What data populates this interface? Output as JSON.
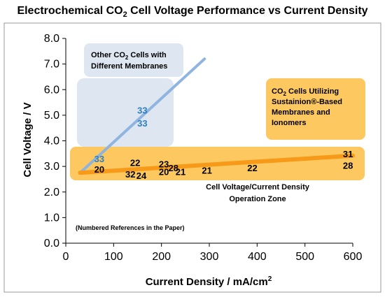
{
  "chart_data": {
    "type": "line",
    "title": "Electrochemical CO2 Cell Voltage Performance vs Current Density",
    "xlabel": "Current Density / mA/cm2",
    "ylabel": "Cell Voltage / V",
    "xlim": [
      0,
      600
    ],
    "ylim": [
      0.0,
      8.0
    ],
    "x_ticks": [
      "0",
      "100",
      "200",
      "300",
      "400",
      "500",
      "600"
    ],
    "y_ticks": [
      "0.0",
      "1.0",
      "2.0",
      "3.0",
      "4.0",
      "5.0",
      "6.0",
      "7.0",
      "8.0"
    ],
    "grid": false,
    "series": [
      {
        "name": "",
        "color": "#8fb4df",
        "x": [
          30,
          290
        ],
        "y": [
          2.75,
          7.2
        ]
      },
      {
        "name": "",
        "color": "#f79a1a",
        "x": [
          30,
          600
        ],
        "y": [
          2.75,
          3.42
        ]
      }
    ],
    "reference_labels": [
      {
        "text": "33",
        "x": 70,
        "y": 3.3,
        "color": "#2e7fbf"
      },
      {
        "text": "33",
        "x": 160,
        "y": 5.2,
        "color": "#2e7fbf"
      },
      {
        "text": "33",
        "x": 160,
        "y": 4.7,
        "color": "#2e7fbf"
      },
      {
        "text": "20",
        "x": 70,
        "y": 2.9,
        "color": "#000000"
      },
      {
        "text": "22",
        "x": 145,
        "y": 3.15,
        "color": "#000000"
      },
      {
        "text": "32",
        "x": 135,
        "y": 2.7,
        "color": "#000000"
      },
      {
        "text": "24",
        "x": 158,
        "y": 2.65,
        "color": "#000000"
      },
      {
        "text": "23",
        "x": 205,
        "y": 3.1,
        "color": "#000000"
      },
      {
        "text": "20",
        "x": 205,
        "y": 2.8,
        "color": "#000000"
      },
      {
        "text": "28",
        "x": 225,
        "y": 2.95,
        "color": "#000000"
      },
      {
        "text": "21",
        "x": 240,
        "y": 2.8,
        "color": "#000000"
      },
      {
        "text": "21",
        "x": 295,
        "y": 2.85,
        "color": "#000000"
      },
      {
        "text": "22",
        "x": 390,
        "y": 2.95,
        "color": "#000000"
      },
      {
        "text": "31",
        "x": 590,
        "y": 3.5,
        "color": "#000000"
      },
      {
        "text": "28",
        "x": 590,
        "y": 3.05,
        "color": "#000000"
      }
    ],
    "annotations": {
      "blue_box_line1": "Other CO2 Cells with",
      "blue_box_line2": "Different Membranes",
      "orange_box_line1": "CO2 Cells Utilizing",
      "orange_box_line2": "Sustainion®-Based",
      "orange_box_line3": "Membranes and",
      "orange_box_line4": "Ionomers",
      "zone_line1": "Cell Voltage/Current Density",
      "zone_line2": "Operation Zone",
      "note": "(Numbered References in the Paper)"
    },
    "colors": {
      "blue_box": "#dde6f1",
      "blue_line": "#8fb4df",
      "orange_box": "#fdc85f",
      "orange_line": "#f79a1a",
      "blue_label": "#2e7fbf"
    }
  }
}
